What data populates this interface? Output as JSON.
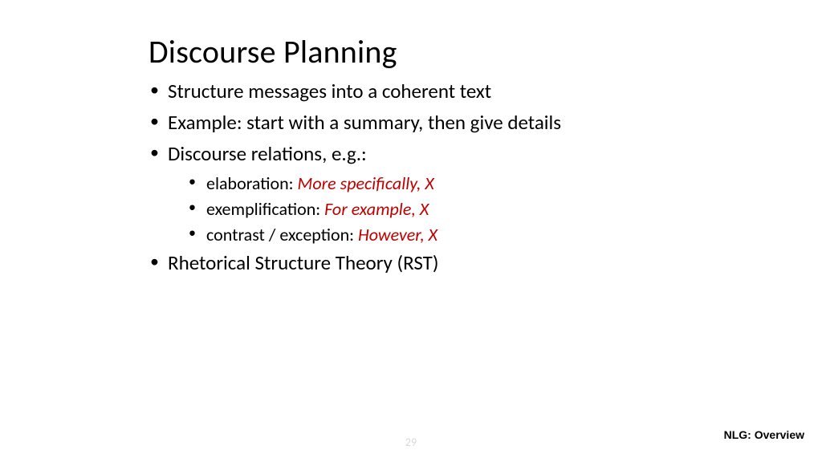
{
  "title": "Discourse Planning",
  "bullets": {
    "b1": "Structure messages into a coherent text",
    "b2": "Example: start with a summary, then give details",
    "b3": "Discourse relations, e.g.:",
    "b4": "Rhetorical Structure Theory (RST)"
  },
  "sub": {
    "s1_label": "elaboration: ",
    "s1_accent": "More specifically, X",
    "s2_label": "exemplification: ",
    "s2_accent": "For example, X",
    "s3_label": "contrast / exception: ",
    "s3_accent": "However, X"
  },
  "footer": "NLG: Overview",
  "page_number": "29",
  "colors": {
    "accent": "#c00000",
    "text": "#000000",
    "page_num": "#d9d9d9",
    "background": "#ffffff"
  },
  "typography": {
    "title_fontsize": 40,
    "body_fontsize": 25,
    "sub_fontsize": 22,
    "footer_fontsize": 14,
    "font_family": "Calibri"
  }
}
